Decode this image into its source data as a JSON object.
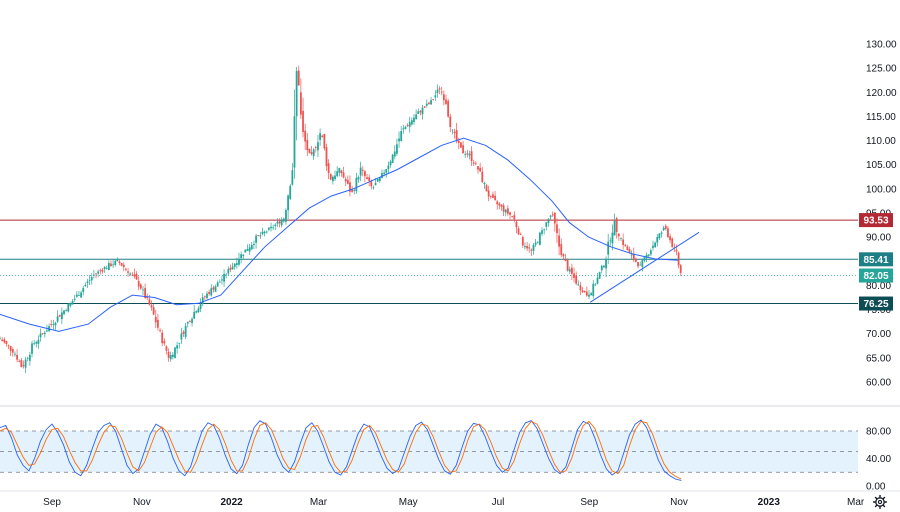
{
  "colors": {
    "up": "#26a69a",
    "down": "#ef5350",
    "ma": "#2962ff",
    "resistance": "#b22833",
    "support_teal": "#1f7f86",
    "support_dark": "#0d4d55",
    "price_tag": "#26a69a",
    "stoch_k": "#2962ff",
    "stoch_d": "#ff6d00",
    "stoch_band": "#e3f2fd",
    "grid_axis": "#131722"
  },
  "chart_data": [
    {
      "type": "candlestick",
      "title": "",
      "ylim": [
        57,
        133
      ],
      "y_ticks": [
        "130.00",
        "125.00",
        "120.00",
        "115.00",
        "110.00",
        "105.00",
        "100.00",
        "95.00",
        "90.00",
        "85.00",
        "80.00",
        "75.00",
        "70.00",
        "65.00",
        "60.00"
      ],
      "y_tick_values": [
        130,
        125,
        120,
        115,
        110,
        105,
        100,
        95,
        90,
        85,
        80,
        75,
        70,
        65,
        60
      ],
      "x_labels": [
        "Sep",
        "Nov",
        "2022",
        "Mar",
        "May",
        "Jul",
        "Sep",
        "Nov",
        "2023",
        "Mar"
      ],
      "x_label_day_index": [
        0,
        61,
        122,
        181,
        242,
        303,
        365,
        426,
        487,
        546
      ],
      "horizontal_levels": [
        {
          "value": 93.53,
          "label": "93.53",
          "style": "resistance"
        },
        {
          "value": 85.41,
          "label": "85.41",
          "style": "support_teal"
        },
        {
          "value": 76.25,
          "label": "76.25",
          "style": "support_dark"
        }
      ],
      "last_price": {
        "value": 82.05,
        "label": "82.05"
      },
      "trendline": {
        "from": [
          386,
          76.5
        ],
        "to": [
          460,
          91.0
        ]
      },
      "price_path": [
        [
          -15,
          69
        ],
        [
          -5,
          66
        ],
        [
          0,
          63
        ],
        [
          8,
          68
        ],
        [
          20,
          72
        ],
        [
          35,
          77
        ],
        [
          48,
          82
        ],
        [
          58,
          84
        ],
        [
          65,
          85
        ],
        [
          72,
          83
        ],
        [
          80,
          80
        ],
        [
          88,
          75
        ],
        [
          95,
          69
        ],
        [
          100,
          65
        ],
        [
          106,
          68
        ],
        [
          112,
          72
        ],
        [
          118,
          75
        ],
        [
          125,
          78
        ],
        [
          135,
          81
        ],
        [
          148,
          86
        ],
        [
          160,
          90
        ],
        [
          170,
          92
        ],
        [
          178,
          94
        ],
        [
          184,
          105
        ],
        [
          187,
          127
        ],
        [
          190,
          112
        ],
        [
          196,
          106
        ],
        [
          203,
          112
        ],
        [
          209,
          102
        ],
        [
          216,
          104
        ],
        [
          224,
          99
        ],
        [
          230,
          104
        ],
        [
          238,
          100
        ],
        [
          245,
          103
        ],
        [
          252,
          107
        ],
        [
          258,
          112
        ],
        [
          264,
          114
        ],
        [
          270,
          116
        ],
        [
          278,
          118
        ],
        [
          284,
          121
        ],
        [
          288,
          118
        ],
        [
          292,
          112
        ],
        [
          298,
          108
        ],
        [
          304,
          107
        ],
        [
          310,
          104
        ],
        [
          318,
          98
        ],
        [
          326,
          96
        ],
        [
          334,
          94
        ],
        [
          340,
          89
        ],
        [
          346,
          87
        ],
        [
          353,
          91
        ],
        [
          360,
          95
        ],
        [
          365,
          88
        ],
        [
          370,
          84
        ],
        [
          378,
          80
        ],
        [
          384,
          78
        ],
        [
          389,
          80
        ],
        [
          396,
          85
        ],
        [
          402,
          93
        ],
        [
          408,
          89
        ],
        [
          414,
          86
        ],
        [
          420,
          84
        ],
        [
          426,
          87
        ],
        [
          432,
          90
        ],
        [
          437,
          92
        ],
        [
          441,
          89
        ],
        [
          445,
          86
        ],
        [
          447,
          83
        ],
        [
          448,
          82.05
        ]
      ],
      "ma_path": [
        [
          -15,
          74
        ],
        [
          5,
          72
        ],
        [
          25,
          70.5
        ],
        [
          45,
          72
        ],
        [
          60,
          75.5
        ],
        [
          75,
          78
        ],
        [
          90,
          77.5
        ],
        [
          105,
          76
        ],
        [
          120,
          76.3
        ],
        [
          135,
          78
        ],
        [
          150,
          83
        ],
        [
          165,
          88
        ],
        [
          180,
          92
        ],
        [
          195,
          96
        ],
        [
          210,
          98.5
        ],
        [
          225,
          100
        ],
        [
          240,
          102
        ],
        [
          255,
          104
        ],
        [
          270,
          106.5
        ],
        [
          285,
          109
        ],
        [
          300,
          110.5
        ],
        [
          315,
          109
        ],
        [
          330,
          106
        ],
        [
          345,
          102
        ],
        [
          360,
          97.5
        ],
        [
          372,
          93
        ],
        [
          385,
          90
        ],
        [
          400,
          88
        ],
        [
          415,
          86.5
        ],
        [
          430,
          85.5
        ],
        [
          446,
          85.2
        ]
      ],
      "x_range_days": [
        -15,
        568
      ]
    },
    {
      "type": "line",
      "title": "",
      "ylim": [
        0,
        100
      ],
      "y_ticks": [
        "80.00",
        "40.00",
        "0.00"
      ],
      "y_tick_values": [
        80,
        40,
        0
      ],
      "band": [
        20,
        80
      ],
      "series": [
        {
          "role": "k",
          "values": [
            85,
            88,
            70,
            45,
            30,
            22,
            40,
            65,
            82,
            90,
            78,
            60,
            35,
            20,
            15,
            30,
            55,
            78,
            88,
            92,
            80,
            55,
            30,
            18,
            25,
            50,
            75,
            90,
            85,
            65,
            40,
            22,
            15,
            28,
            55,
            80,
            92,
            88,
            70,
            45,
            25,
            18,
            30,
            60,
            85,
            95,
            90,
            70,
            45,
            28,
            20,
            35,
            62,
            85,
            92,
            80,
            58,
            35,
            20,
            16,
            28,
            52,
            76,
            90,
            86,
            66,
            44,
            26,
            18,
            24,
            48,
            72,
            88,
            93,
            82,
            60,
            38,
            22,
            17,
            30,
            56,
            80,
            91,
            89,
            72,
            50,
            30,
            20,
            26,
            52,
            78,
            92,
            95,
            84,
            62,
            40,
            24,
            18,
            28,
            55,
            82,
            94,
            90,
            70,
            45,
            25,
            16,
            22,
            48,
            74,
            90,
            96,
            85,
            62,
            38,
            22,
            15,
            10,
            8
          ]
        },
        {
          "role": "d",
          "values": [
            80,
            84,
            78,
            60,
            42,
            30,
            32,
            48,
            68,
            82,
            84,
            72,
            52,
            34,
            22,
            22,
            38,
            60,
            78,
            88,
            86,
            70,
            48,
            28,
            22,
            34,
            56,
            78,
            86,
            78,
            58,
            38,
            22,
            20,
            36,
            60,
            82,
            90,
            82,
            62,
            38,
            22,
            22,
            40,
            68,
            88,
            92,
            82,
            62,
            40,
            26,
            24,
            42,
            68,
            86,
            88,
            72,
            50,
            30,
            20,
            22,
            38,
            62,
            82,
            88,
            78,
            58,
            38,
            24,
            20,
            32,
            56,
            78,
            90,
            88,
            72,
            50,
            30,
            20,
            22,
            40,
            66,
            86,
            90,
            82,
            64,
            42,
            26,
            22,
            36,
            62,
            84,
            94,
            90,
            74,
            52,
            32,
            20,
            22,
            40,
            68,
            88,
            94,
            84,
            62,
            38,
            22,
            18,
            30,
            58,
            82,
            94,
            92,
            76,
            52,
            32,
            20,
            14,
            10
          ]
        }
      ]
    }
  ]
}
